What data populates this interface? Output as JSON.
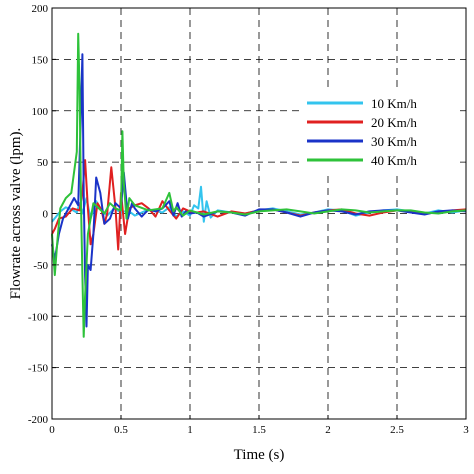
{
  "chart_data": {
    "type": "line",
    "title": "",
    "xlabel": "Time (s)",
    "ylabel": "Flowrate across valve (lpm).",
    "xlim": [
      0,
      3
    ],
    "ylim": [
      -200,
      200
    ],
    "xticks": [
      0,
      0.5,
      1,
      1.5,
      2,
      2.5,
      3
    ],
    "xtick_labels": [
      "0",
      "0.5",
      "1",
      "1.5",
      "2",
      "2.5",
      "3"
    ],
    "yticks": [
      200,
      150,
      100,
      50,
      0,
      -50,
      -100,
      -150,
      -200
    ],
    "ytick_labels": [
      "200",
      "150",
      "100",
      "50",
      "0",
      "-50",
      "-100",
      "-150",
      "-200"
    ],
    "grid": true,
    "legend_position": "right",
    "series": [
      {
        "name": "10 Km/h",
        "color": "#33c4ee",
        "x": [
          0,
          0.03,
          0.06,
          0.1,
          0.14,
          0.18,
          0.2,
          0.22,
          0.25,
          0.28,
          0.32,
          0.36,
          0.4,
          0.45,
          0.5,
          0.55,
          0.6,
          0.7,
          0.8,
          0.85,
          0.9,
          0.95,
          1.0,
          1.03,
          1.06,
          1.08,
          1.1,
          1.12,
          1.15,
          1.2,
          1.3,
          1.4,
          1.5,
          1.6,
          1.7,
          1.8,
          1.9,
          2.0,
          2.1,
          2.2,
          2.3,
          2.4,
          2.5,
          2.6,
          2.7,
          2.8,
          2.9,
          3.0
        ],
        "y": [
          -8,
          -3,
          2,
          6,
          4,
          1,
          10,
          0,
          15,
          -5,
          12,
          3,
          -2,
          5,
          1,
          3,
          -2,
          4,
          1,
          6,
          -3,
          2,
          -2,
          8,
          5,
          26,
          -8,
          12,
          -4,
          3,
          1,
          0,
          3,
          5,
          2,
          -1,
          1,
          4,
          3,
          -2,
          1,
          3,
          4,
          2,
          0,
          3,
          1,
          3
        ]
      },
      {
        "name": "20 Km/h",
        "color": "#e02020",
        "x": [
          0,
          0.02,
          0.05,
          0.1,
          0.15,
          0.2,
          0.22,
          0.24,
          0.26,
          0.28,
          0.3,
          0.33,
          0.36,
          0.38,
          0.4,
          0.43,
          0.46,
          0.48,
          0.5,
          0.53,
          0.56,
          0.6,
          0.65,
          0.7,
          0.75,
          0.8,
          0.85,
          0.9,
          0.95,
          1.0,
          1.05,
          1.1,
          1.2,
          1.3,
          1.4,
          1.5,
          1.6,
          1.7,
          1.8,
          1.9,
          2.0,
          2.1,
          2.2,
          2.3,
          2.4,
          2.5,
          2.6,
          2.7,
          2.8,
          2.9,
          3.0
        ],
        "y": [
          -20,
          -15,
          -5,
          -3,
          5,
          3,
          20,
          52,
          5,
          -30,
          -20,
          10,
          3,
          -10,
          0,
          45,
          5,
          -35,
          20,
          -20,
          5,
          8,
          10,
          5,
          -3,
          12,
          3,
          -5,
          5,
          2,
          1,
          2,
          -3,
          2,
          0,
          3,
          4,
          1,
          -2,
          1,
          3,
          4,
          0,
          -2,
          1,
          3,
          2,
          0,
          1,
          3,
          4
        ]
      },
      {
        "name": "30 Km/h",
        "color": "#1a33c8",
        "x": [
          0,
          0.02,
          0.05,
          0.08,
          0.12,
          0.16,
          0.19,
          0.21,
          0.22,
          0.23,
          0.24,
          0.25,
          0.26,
          0.28,
          0.3,
          0.32,
          0.35,
          0.38,
          0.42,
          0.46,
          0.5,
          0.52,
          0.55,
          0.58,
          0.6,
          0.65,
          0.7,
          0.75,
          0.8,
          0.85,
          0.88,
          0.91,
          0.94,
          0.97,
          1.0,
          1.05,
          1.1,
          1.2,
          1.3,
          1.4,
          1.5,
          1.6,
          1.7,
          1.8,
          1.9,
          2.0,
          2.1,
          2.2,
          2.3,
          2.4,
          2.5,
          2.6,
          2.7,
          2.8,
          2.9,
          3.0
        ],
        "y": [
          -30,
          -45,
          -20,
          -5,
          5,
          15,
          8,
          100,
          155,
          20,
          -60,
          -110,
          -50,
          -55,
          -20,
          35,
          20,
          -10,
          -5,
          10,
          5,
          40,
          -5,
          10,
          5,
          -3,
          4,
          2,
          5,
          12,
          -2,
          10,
          -3,
          2,
          0,
          1,
          -3,
          2,
          1,
          -2,
          4,
          4,
          1,
          -3,
          1,
          3,
          2,
          -1,
          2,
          3,
          3,
          1,
          -1,
          2,
          3,
          2
        ]
      },
      {
        "name": "40 Km/h",
        "color": "#2ec23a",
        "x": [
          0,
          0.02,
          0.04,
          0.06,
          0.1,
          0.14,
          0.18,
          0.19,
          0.2,
          0.21,
          0.22,
          0.23,
          0.24,
          0.26,
          0.3,
          0.34,
          0.38,
          0.42,
          0.46,
          0.5,
          0.51,
          0.52,
          0.54,
          0.56,
          0.6,
          0.7,
          0.8,
          0.85,
          0.88,
          0.9,
          0.95,
          1.0,
          1.1,
          1.2,
          1.3,
          1.4,
          1.5,
          1.6,
          1.7,
          1.8,
          1.9,
          2.0,
          2.1,
          2.2,
          2.3,
          2.4,
          2.5,
          2.6,
          2.7,
          2.8,
          2.9,
          3.0
        ],
        "y": [
          -20,
          -60,
          -25,
          5,
          15,
          20,
          60,
          175,
          120,
          10,
          -60,
          -120,
          -80,
          -20,
          10,
          5,
          0,
          10,
          5,
          3,
          80,
          30,
          -5,
          15,
          8,
          3,
          5,
          20,
          2,
          6,
          -2,
          3,
          -1,
          2,
          1,
          -1,
          2,
          3,
          4,
          2,
          0,
          2,
          4,
          3,
          1,
          2,
          3,
          3,
          1,
          0,
          2,
          3
        ]
      }
    ]
  }
}
